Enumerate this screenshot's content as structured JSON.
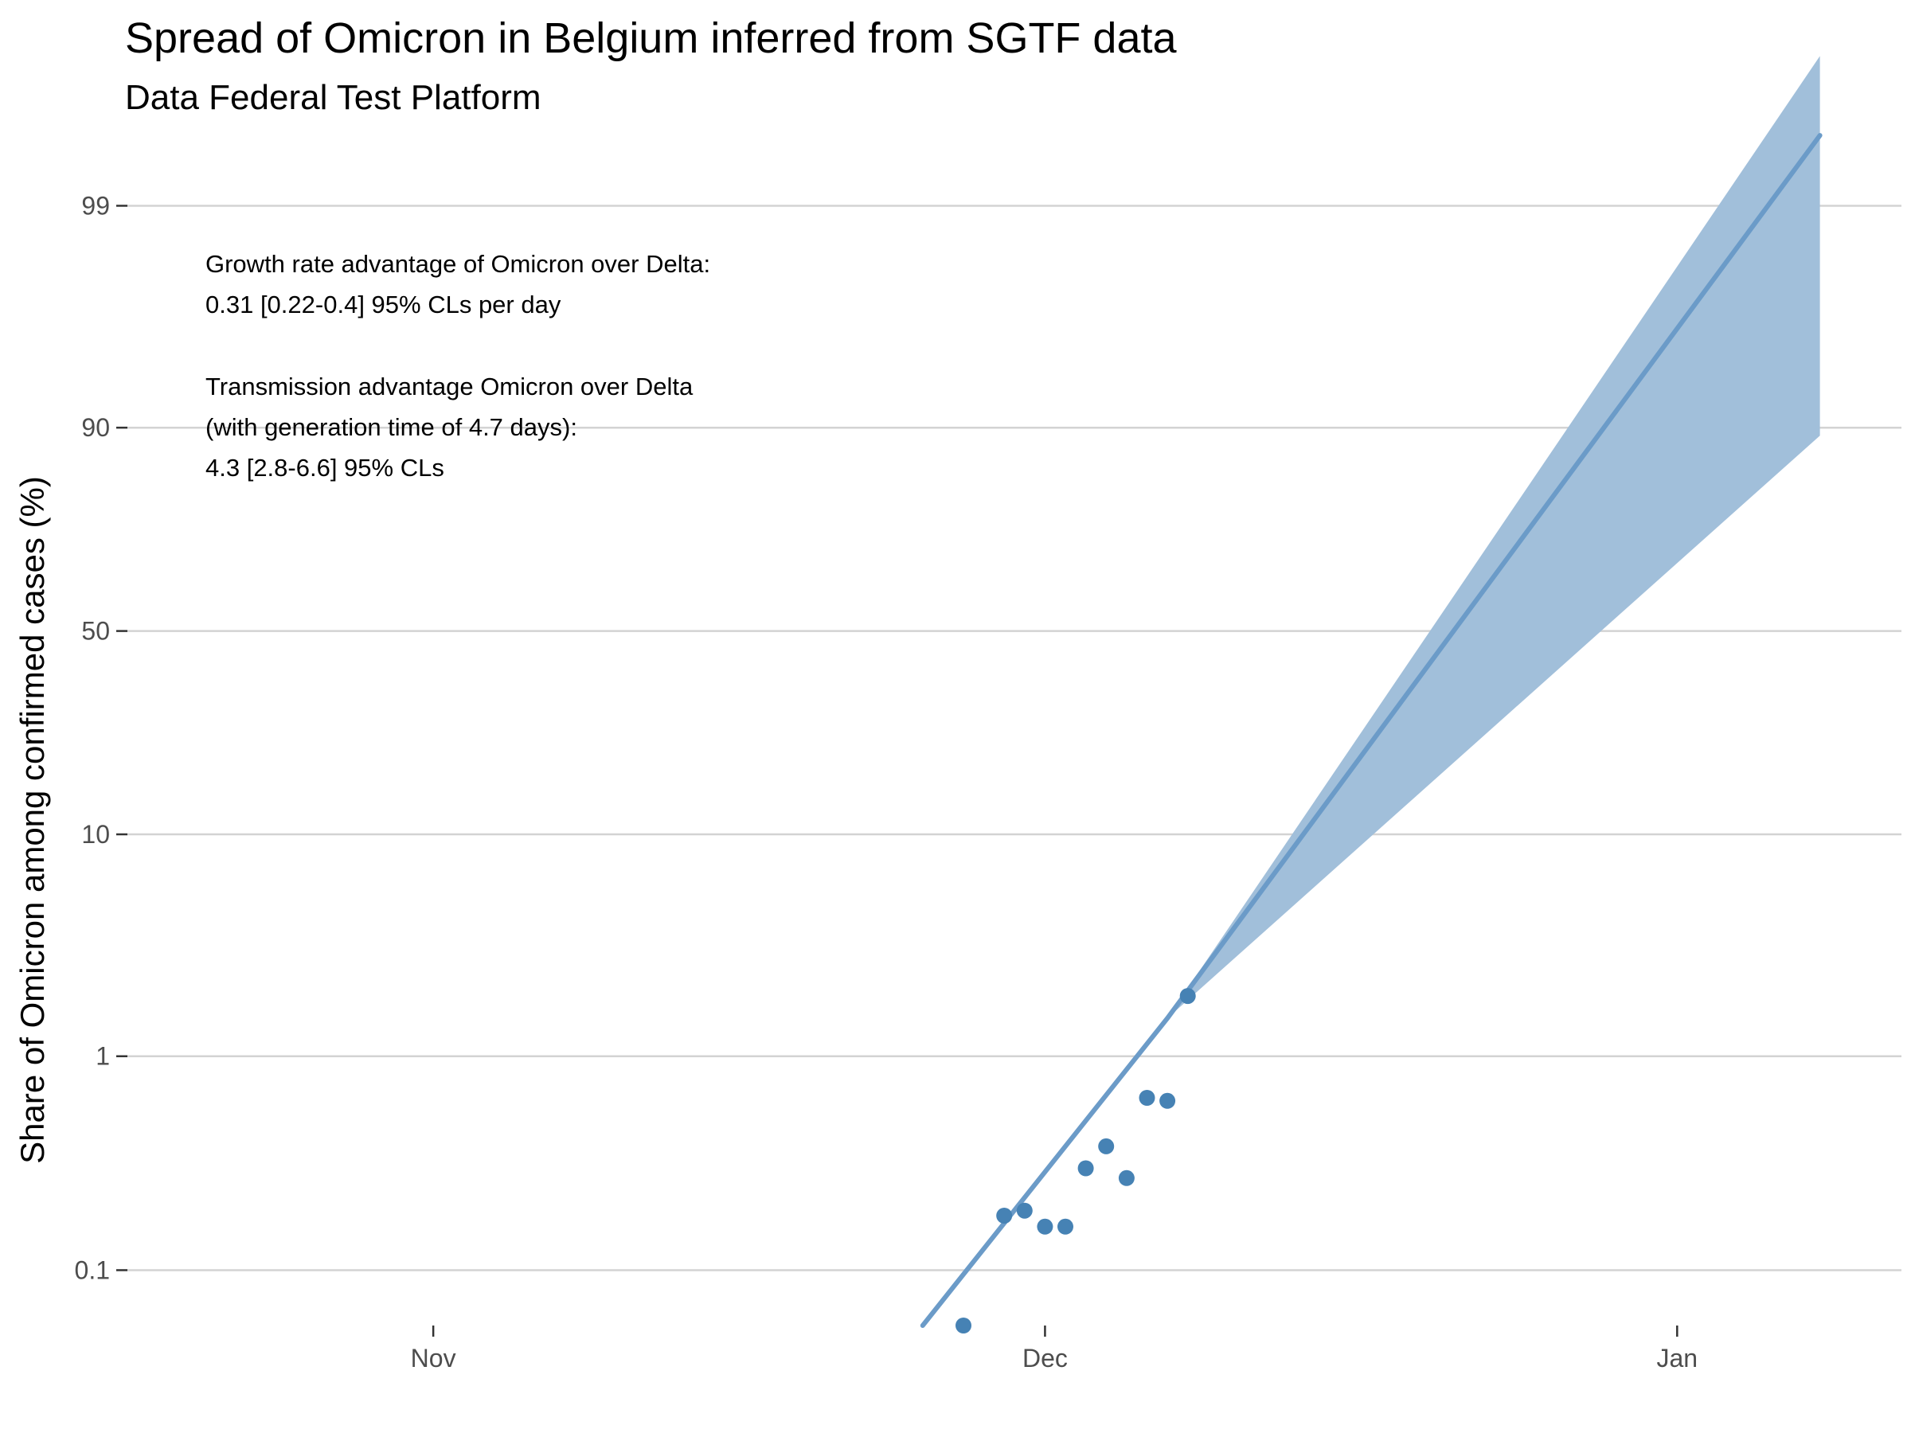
{
  "chart_data": {
    "type": "line",
    "title": "Spread of Omicron in Belgium inferred from SGTF data",
    "subtitle": "Data Federal Test Platform",
    "xlabel": "",
    "ylabel": "Share of Omicron among confirmed cases (%)",
    "y_scale": "logit",
    "ylim": [
      0.055,
      99.55
    ],
    "xlim": [
      "2021-10-17",
      "2022-01-12"
    ],
    "x_ticks": [
      {
        "date": "2021-11-01",
        "label": "Nov"
      },
      {
        "date": "2021-12-01",
        "label": "Dec"
      },
      {
        "date": "2022-01-01",
        "label": "Jan"
      }
    ],
    "y_ticks": [
      {
        "value": 0.1,
        "label": "0.1"
      },
      {
        "value": 1,
        "label": "1"
      },
      {
        "value": 10,
        "label": "10"
      },
      {
        "value": 50,
        "label": "50"
      },
      {
        "value": 90,
        "label": "90"
      },
      {
        "value": 99,
        "label": "99"
      }
    ],
    "grid": "horizontal",
    "colors": {
      "points": "#4682b4",
      "line": "#6b9bc8",
      "band": "#a1bfda"
    },
    "series": [
      {
        "type": "fit",
        "x": [
          "2021-11-25",
          "2021-12-07",
          "2022-01-08"
        ],
        "y": [
          0.055,
          1.5,
          99.53
        ]
      },
      {
        "type": "confidence_band",
        "x": [
          "2021-11-25",
          "2021-12-07",
          "2022-01-08"
        ],
        "lower": [
          0.055,
          1.5,
          89.2
        ],
        "upper": [
          0.055,
          1.5,
          99.8
        ]
      },
      {
        "type": "points",
        "x": [
          "2021-11-27",
          "2021-11-29",
          "2021-11-30",
          "2021-12-01",
          "2021-12-02",
          "2021-12-03",
          "2021-12-04",
          "2021-12-05",
          "2021-12-06",
          "2021-12-07",
          "2021-12-08"
        ],
        "y": [
          0.055,
          0.18,
          0.19,
          0.16,
          0.16,
          0.3,
          0.38,
          0.27,
          0.64,
          0.62,
          1.9
        ]
      }
    ],
    "annotations": [
      "Growth rate advantage of Omicron over Delta:",
      "0.31 [0.22-0.4] 95% CLs per day",
      "Transmission advantage Omicron over Delta",
      "(with generation time of 4.7 days):",
      "4.3 [2.8-6.6] 95% CLs"
    ]
  }
}
